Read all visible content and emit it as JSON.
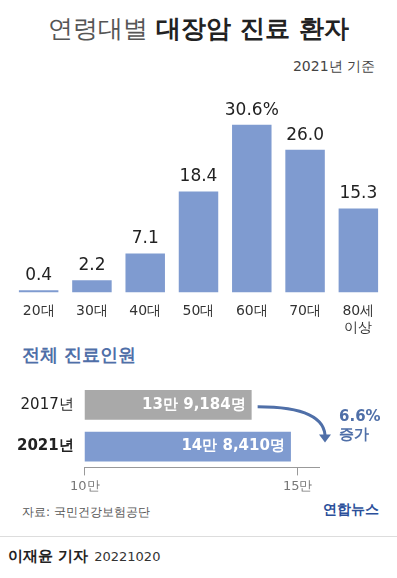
{
  "chart_data": [
    {
      "type": "bar",
      "title": "연령대별 대장암 진료 환자",
      "subtitle": "2021년 기준",
      "categories": [
        "20대",
        "30대",
        "40대",
        "50대",
        "60대",
        "70대",
        "80세 이상"
      ],
      "values": [
        0.4,
        2.2,
        7.1,
        18.4,
        30.6,
        26.0,
        15.3
      ],
      "value_labels": [
        "0.4",
        "2.2",
        "7.1",
        "18.4",
        "30.6%",
        "26.0",
        "15.3"
      ],
      "color": "#7f9bd0",
      "ylim": [
        0,
        34
      ],
      "data_labels": true,
      "tick_labels": "x",
      "grid": false
    },
    {
      "type": "bar",
      "title": "전체 진료인원",
      "orientation": "horizontal",
      "categories": [
        "2017년",
        "2021년"
      ],
      "values": [
        139184,
        148410
      ],
      "value_labels": [
        "13만 9,184명",
        "14만 8,410명"
      ],
      "colors": [
        "#a9a9a9",
        "#7f9bd0"
      ],
      "xlim": [
        100000,
        155000
      ],
      "xticks": [
        {
          "value": 100000,
          "label": "10만"
        },
        {
          "value": 150000,
          "label": "15만"
        }
      ],
      "annotation": "6.6% 증가",
      "data_labels": true,
      "grid": false
    }
  ],
  "source": "자료: 국민건강보험공단",
  "logo": "연합뉴스",
  "reporter": "이재윤 기자",
  "date": "20221020"
}
